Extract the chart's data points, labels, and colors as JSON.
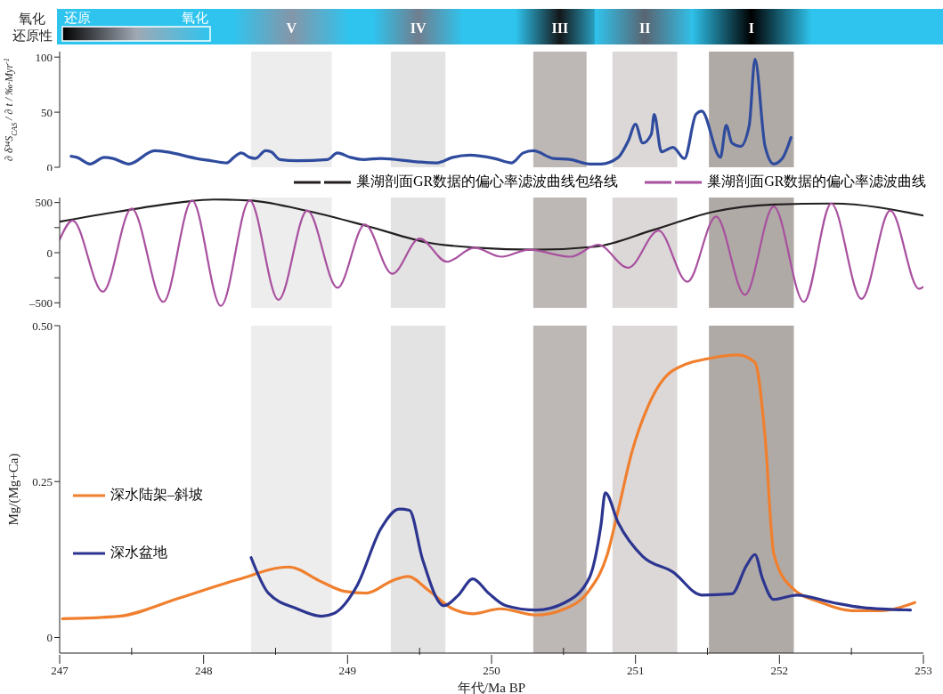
{
  "chart_data": [
    {
      "type": "line",
      "ylabel": "∂ δ³⁴S$_{CAS}$ / ∂ t / ‰·Myr$^{-1}$",
      "annotations": [
        "氧化",
        "还原性",
        "还原",
        "氧化"
      ],
      "xlim": [
        247,
        253
      ],
      "ylim": [
        0,
        105
      ],
      "yticks": [
        0,
        50,
        100
      ],
      "tick_labels": "y",
      "legend": false,
      "bands": [
        {
          "axis": "x",
          "from": 248.33,
          "to": 248.89,
          "label": "V",
          "color": "#ededed"
        },
        {
          "axis": "x",
          "from": 249.3,
          "to": 249.68,
          "label": "IV",
          "color": "#e4e3e3"
        },
        {
          "axis": "x",
          "from": 250.29,
          "to": 250.66,
          "label": "III",
          "color": "#bdb8b6"
        },
        {
          "axis": "x",
          "from": 250.84,
          "to": 251.29,
          "label": "II",
          "color": "#dcd8d8"
        },
        {
          "axis": "x",
          "from": 251.51,
          "to": 252.1,
          "label": "I",
          "color": "#b0aaa7"
        }
      ],
      "series": [
        {
          "color": "#2f4b9e",
          "x": [
            247.08,
            247.12,
            247.21,
            247.31,
            247.37,
            247.48,
            247.66,
            247.74,
            247.95,
            248.05,
            248.16,
            248.21,
            248.26,
            248.32,
            248.36,
            248.43,
            248.47,
            248.53,
            248.65,
            248.86,
            248.93,
            249.02,
            249.11,
            249.23,
            249.48,
            249.62,
            249.73,
            249.85,
            250.02,
            250.14,
            250.22,
            250.29,
            250.43,
            250.55,
            250.68,
            250.76,
            250.88,
            250.95,
            251.0,
            251.05,
            251.11,
            251.13,
            251.18,
            251.26,
            251.34,
            251.42,
            251.46,
            251.59,
            251.63,
            251.67,
            251.73,
            251.79,
            251.83,
            251.9,
            251.96,
            252.02,
            252.08
          ],
          "values": [
            10,
            9,
            3,
            9,
            8,
            3,
            15,
            14,
            8,
            6,
            4,
            9,
            13,
            9,
            8,
            15,
            14,
            7,
            6,
            7,
            13,
            9,
            7,
            8,
            5,
            4,
            9,
            11,
            8,
            4,
            13,
            15,
            8,
            7,
            3,
            3,
            9,
            24,
            39,
            22,
            30,
            48,
            14,
            18,
            8,
            48,
            51,
            9,
            38,
            22,
            19,
            38,
            98,
            19,
            3,
            8,
            27
          ]
        }
      ]
    },
    {
      "type": "line",
      "xlim": [
        247,
        253
      ],
      "ylim": [
        -550,
        550
      ],
      "yticks": [
        500,
        {
          "value": 250,
          "label": null
        },
        0,
        {
          "value": -250,
          "label": null
        },
        {
          "value": -500,
          "label": "–500"
        }
      ],
      "tick_labels": "y",
      "legend": "top",
      "bands": [
        {
          "axis": "x",
          "from": 248.33,
          "to": 248.89,
          "color": "#ededed"
        },
        {
          "axis": "x",
          "from": 249.3,
          "to": 249.68,
          "color": "#e4e3e3"
        },
        {
          "axis": "x",
          "from": 250.29,
          "to": 250.66,
          "color": "#bdb8b6"
        },
        {
          "axis": "x",
          "from": 250.84,
          "to": 251.29,
          "color": "#dcd8d8"
        },
        {
          "axis": "x",
          "from": 251.51,
          "to": 252.1,
          "color": "#b0aaa7"
        }
      ],
      "series": [
        {
          "name": "巢湖剖面GR数据的偏心率滤波曲线包络线",
          "color": "#231f20",
          "x": [
            247.0,
            247.41,
            247.83,
            248.07,
            248.32,
            248.74,
            249.15,
            249.56,
            249.89,
            250.31,
            250.72,
            251.13,
            251.55,
            251.96,
            252.37,
            253.0
          ],
          "values": [
            310,
            410,
            500,
            530,
            520,
            410,
            260,
            100,
            50,
            30,
            60,
            230,
            410,
            480,
            490,
            370
          ]
        },
        {
          "name": "巢湖剖面GR数据的偏心率滤波曲线",
          "color": "#a8509f",
          "x": [
            247.0,
            247.09,
            247.3,
            247.5,
            247.72,
            247.92,
            248.12,
            248.32,
            248.52,
            248.72,
            248.93,
            249.12,
            249.31,
            249.5,
            249.69,
            249.88,
            250.07,
            250.26,
            250.55,
            250.74,
            250.95,
            251.16,
            251.36,
            251.56,
            251.76,
            251.96,
            252.17,
            252.36,
            252.57,
            252.77,
            252.97,
            253.0
          ],
          "values": [
            130,
            320,
            -390,
            440,
            -490,
            520,
            -530,
            520,
            -470,
            420,
            -350,
            280,
            -210,
            140,
            -90,
            50,
            -40,
            30,
            -40,
            80,
            -150,
            220,
            -290,
            360,
            -420,
            460,
            -490,
            490,
            -460,
            420,
            -360,
            -340
          ]
        }
      ]
    },
    {
      "type": "line",
      "xlabel": "年代/Ma BP",
      "ylabel": "Mg/(Mg+Ca)",
      "xlim": [
        247,
        253
      ],
      "ylim": [
        -0.025,
        0.5
      ],
      "yticks": [
        0,
        0.25,
        {
          "value": 0.5,
          "label": "0.50"
        }
      ],
      "xticks": [
        247,
        {
          "value": 247.5,
          "label": null
        },
        248,
        {
          "value": 248.5,
          "label": null
        },
        249,
        {
          "value": 249.5,
          "label": null
        },
        250,
        {
          "value": 250.5,
          "label": null
        },
        251,
        {
          "value": 251.5,
          "label": null
        },
        252,
        {
          "value": 252.5,
          "label": null
        },
        253
      ],
      "legend": "left",
      "bands": [
        {
          "axis": "x",
          "from": 248.33,
          "to": 248.89,
          "color": "#ededed"
        },
        {
          "axis": "x",
          "from": 249.3,
          "to": 249.68,
          "color": "#e4e3e3"
        },
        {
          "axis": "x",
          "from": 250.29,
          "to": 250.66,
          "color": "#bdb8b6"
        },
        {
          "axis": "x",
          "from": 250.84,
          "to": 251.29,
          "color": "#dcd8d8"
        },
        {
          "axis": "x",
          "from": 251.51,
          "to": 252.1,
          "color": "#b0aaa7"
        }
      ],
      "series": [
        {
          "name": "深水陆架–斜坡",
          "color": "#f07f2e",
          "x": [
            247.02,
            247.41,
            247.83,
            248.24,
            248.59,
            248.82,
            248.98,
            249.13,
            249.31,
            249.42,
            249.56,
            249.73,
            249.87,
            250.06,
            250.31,
            250.51,
            250.68,
            250.8,
            250.88,
            250.97,
            251.09,
            251.26,
            251.55,
            251.71,
            251.83,
            251.9,
            251.96,
            252.08,
            252.29,
            252.5,
            252.7,
            252.94
          ],
          "values": [
            0.03,
            0.034,
            0.063,
            0.093,
            0.113,
            0.089,
            0.074,
            0.071,
            0.091,
            0.098,
            0.076,
            0.046,
            0.038,
            0.046,
            0.036,
            0.046,
            0.076,
            0.13,
            0.204,
            0.293,
            0.372,
            0.428,
            0.449,
            0.453,
            0.441,
            0.322,
            0.135,
            0.081,
            0.056,
            0.043,
            0.043,
            0.056
          ]
        },
        {
          "name": "深水盆地",
          "color": "#2c3590",
          "x": [
            248.33,
            248.45,
            248.65,
            248.82,
            248.9,
            249.07,
            249.23,
            249.36,
            249.43,
            249.52,
            249.67,
            249.77,
            249.87,
            249.98,
            250.1,
            250.31,
            250.51,
            250.68,
            250.76,
            250.79,
            250.88,
            251.05,
            251.26,
            251.46,
            251.67,
            251.77,
            251.83,
            251.88,
            251.96,
            252.12,
            252.37,
            252.58,
            252.91
          ],
          "values": [
            0.128,
            0.071,
            0.046,
            0.034,
            0.038,
            0.085,
            0.174,
            0.206,
            0.204,
            0.126,
            0.051,
            0.068,
            0.094,
            0.071,
            0.051,
            0.044,
            0.056,
            0.096,
            0.18,
            0.232,
            0.184,
            0.13,
            0.105,
            0.068,
            0.07,
            0.115,
            0.133,
            0.096,
            0.061,
            0.068,
            0.056,
            0.048,
            0.044
          ]
        }
      ]
    }
  ]
}
